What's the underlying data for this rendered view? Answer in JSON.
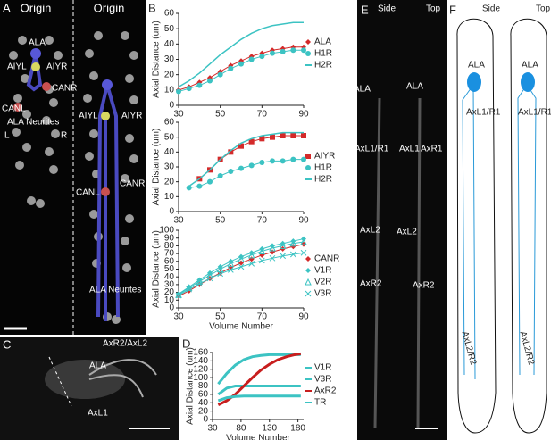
{
  "panels": {
    "A": {
      "letter": "A",
      "titles": [
        "Origin",
        "Origin"
      ],
      "labels": [
        "ALA",
        "AIYL",
        "AIYR",
        "CANR",
        "CANL",
        "ALA Neurites",
        "L",
        "R",
        "AIYL",
        "AIYR",
        "CANL",
        "CANR",
        "ALA Neurites"
      ]
    },
    "B": {
      "letter": "B"
    },
    "C": {
      "letter": "C",
      "labels": [
        "AxR2/AxL2",
        "ALA",
        "AxL1"
      ]
    },
    "D": {
      "letter": "D"
    },
    "E": {
      "letter": "E",
      "titles": [
        "Side",
        "Top"
      ],
      "labels": [
        "ALA",
        "ALA",
        "AxL1/R1",
        "AxL1",
        "AxR1",
        "AxL2",
        "AxL2",
        "AxR2",
        "AxR2"
      ]
    },
    "F": {
      "letter": "F",
      "titles": [
        "Side",
        "Top"
      ],
      "labels": [
        "ALA",
        "ALA",
        "AxL1/R1",
        "AxL1/R1",
        "AxL2/R2",
        "AxL2/R2"
      ]
    }
  },
  "chart_data": [
    {
      "type": "line",
      "ylabel": "Axial Distance (um)",
      "x": [
        30,
        35,
        40,
        45,
        50,
        55,
        60,
        65,
        70,
        75,
        80,
        85,
        90
      ],
      "xlim": [
        30,
        90
      ],
      "xticks": [
        30,
        50,
        70,
        90
      ],
      "ylim": [
        0,
        60
      ],
      "yticks": [
        0,
        10,
        20,
        30,
        40,
        50,
        60
      ],
      "series": [
        {
          "name": "ALA",
          "color": "#d42a2a",
          "marker": "diamond",
          "values": [
            10,
            12,
            15,
            18,
            22,
            26,
            29,
            32,
            34,
            36,
            37,
            38,
            38
          ]
        },
        {
          "name": "H1R",
          "color": "#3cc3c3",
          "marker": "circle",
          "values": [
            9,
            11,
            13,
            16,
            20,
            24,
            27,
            30,
            32,
            34,
            35,
            36,
            36
          ]
        },
        {
          "name": "H2R",
          "color": "#3cc3c3",
          "marker": "none",
          "values": [
            12,
            16,
            21,
            27,
            33,
            38,
            43,
            47,
            50,
            52,
            53,
            54,
            54
          ]
        }
      ]
    },
    {
      "type": "line",
      "ylabel": "Axial Distance (um)",
      "x": [
        30,
        35,
        40,
        45,
        50,
        55,
        60,
        65,
        70,
        75,
        80,
        85,
        90
      ],
      "xlim": [
        30,
        90
      ],
      "xticks": [
        30,
        50,
        70,
        90
      ],
      "ylim": [
        0,
        60
      ],
      "yticks": [
        0,
        10,
        20,
        30,
        40,
        50,
        60
      ],
      "series": [
        {
          "name": "AIYR",
          "color": "#d42a2a",
          "marker": "square",
          "values": [
            null,
            null,
            22,
            28,
            35,
            40,
            44,
            47,
            49,
            50,
            51,
            51,
            51
          ]
        },
        {
          "name": "H1R",
          "color": "#3cc3c3",
          "marker": "circle",
          "values": [
            null,
            16,
            17,
            20,
            24,
            27,
            29,
            31,
            33,
            34,
            34,
            35,
            35
          ]
        },
        {
          "name": "H2R",
          "color": "#3cc3c3",
          "marker": "none",
          "values": [
            null,
            17,
            22,
            28,
            35,
            41,
            46,
            49,
            51,
            52,
            53,
            53,
            53
          ]
        }
      ]
    },
    {
      "type": "line",
      "ylabel": "Axial Distance (um)",
      "xlabel": "Volume Number",
      "x": [
        30,
        35,
        40,
        45,
        50,
        55,
        60,
        65,
        70,
        75,
        80,
        85,
        90
      ],
      "xlim": [
        30,
        90
      ],
      "xticks": [
        30,
        50,
        70,
        90
      ],
      "ylim": [
        0,
        100
      ],
      "yticks": [
        0,
        10,
        20,
        30,
        40,
        50,
        60,
        70,
        80,
        90,
        100
      ],
      "series": [
        {
          "name": "CANR",
          "color": "#d42a2a",
          "marker": "diamond",
          "values": [
            15,
            22,
            30,
            38,
            45,
            52,
            58,
            63,
            68,
            72,
            76,
            79,
            82
          ]
        },
        {
          "name": "V1R",
          "color": "#3cc3c3",
          "marker": "diamond",
          "values": [
            18,
            27,
            36,
            45,
            53,
            60,
            66,
            71,
            76,
            80,
            83,
            86,
            89
          ]
        },
        {
          "name": "V2R",
          "color": "#3cc3c3",
          "marker": "triangle",
          "values": [
            17,
            26,
            34,
            42,
            50,
            57,
            63,
            68,
            73,
            77,
            80,
            83,
            85
          ]
        },
        {
          "name": "V3R",
          "color": "#3cc3c3",
          "marker": "x",
          "values": [
            16,
            24,
            31,
            38,
            44,
            49,
            53,
            57,
            61,
            64,
            67,
            69,
            71
          ]
        }
      ]
    },
    {
      "type": "line",
      "ylabel": "Axial Distance (um)",
      "xlabel": "Volume Number",
      "x": [
        40,
        55,
        70,
        85,
        100,
        115,
        130,
        145,
        160,
        175,
        185
      ],
      "xlim": [
        30,
        190
      ],
      "xticks": [
        30,
        80,
        130,
        180
      ],
      "ylim": [
        0,
        160
      ],
      "yticks": [
        0,
        20,
        40,
        60,
        80,
        100,
        120,
        140,
        160
      ],
      "series": [
        {
          "name": "V1R",
          "color": "#3cc3c3",
          "marker": "none",
          "values": [
            85,
            110,
            130,
            143,
            150,
            153,
            155,
            155,
            155,
            155,
            155
          ]
        },
        {
          "name": "V3R",
          "color": "#3cc3c3",
          "marker": "none",
          "values": [
            60,
            75,
            80,
            80,
            80,
            80,
            80,
            80,
            80,
            80,
            80
          ]
        },
        {
          "name": "AxR2",
          "color": "#c81e1e",
          "marker": "none",
          "values": [
            35,
            45,
            60,
            80,
            100,
            118,
            132,
            143,
            150,
            155,
            157
          ]
        },
        {
          "name": "TR",
          "color": "#3cc3c3",
          "marker": "none",
          "values": [
            45,
            52,
            55,
            56,
            56,
            56,
            56,
            56,
            56,
            56,
            56
          ]
        }
      ]
    }
  ]
}
